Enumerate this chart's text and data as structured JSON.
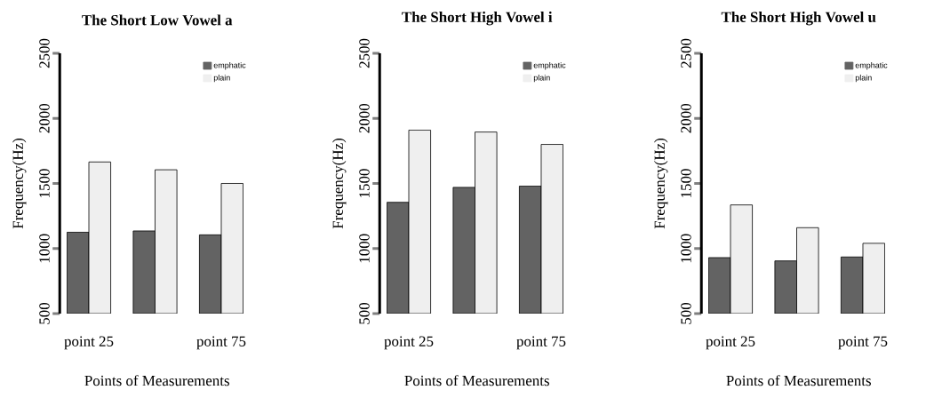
{
  "chart_data": [
    {
      "type": "bar",
      "title": "The Short Low Vowel a",
      "xlabel": "Points of Measurements",
      "ylabel": "Frequency(Hz)",
      "categories": [
        "point 25",
        null,
        "point 75"
      ],
      "series": [
        {
          "name": "emphatic",
          "color": "#636363",
          "values": [
            1125,
            1135,
            1105
          ]
        },
        {
          "name": "plain",
          "color": "#efefef",
          "values": [
            1665,
            1605,
            1500
          ]
        }
      ],
      "ylim": [
        500,
        2500
      ],
      "yticks": [
        500,
        1000,
        1500,
        2000,
        2500
      ],
      "legend": "top right",
      "grid": false
    },
    {
      "type": "bar",
      "title": "The Short High Vowel i",
      "xlabel": "Points of Measurements",
      "ylabel": "Frequency(Hz)",
      "categories": [
        "point 25",
        null,
        "point 75"
      ],
      "series": [
        {
          "name": "emphatic",
          "color": "#636363",
          "values": [
            1355,
            1470,
            1480
          ]
        },
        {
          "name": "plain",
          "color": "#efefef",
          "values": [
            1910,
            1895,
            1800
          ]
        }
      ],
      "ylim": [
        500,
        2500
      ],
      "yticks": [
        500,
        1000,
        1500,
        2000,
        2500
      ],
      "legend": "top right",
      "grid": false
    },
    {
      "type": "bar",
      "title": "The Short High Vowel u",
      "xlabel": "Points of Measurements",
      "ylabel": "Frequency(Hz)",
      "categories": [
        "point 25",
        null,
        "point 75"
      ],
      "series": [
        {
          "name": "emphatic",
          "color": "#636363",
          "values": [
            930,
            905,
            935
          ]
        },
        {
          "name": "plain",
          "color": "#efefef",
          "values": [
            1335,
            1160,
            1040
          ]
        }
      ],
      "ylim": [
        500,
        2500
      ],
      "yticks": [
        500,
        1000,
        1500,
        2000,
        2500
      ],
      "legend": "top right",
      "grid": false
    }
  ]
}
